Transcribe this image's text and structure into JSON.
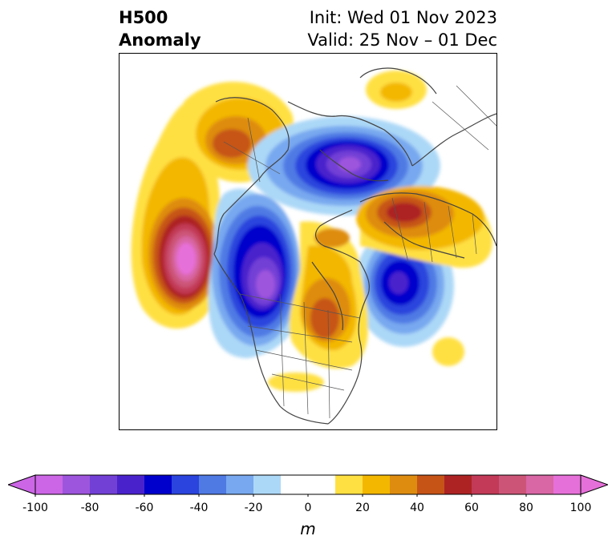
{
  "title": {
    "left_line1": "H500",
    "left_line2": "Anomaly",
    "right_line1": "Init: Wed 01 Nov 2023",
    "right_line2": "Valid: 25 Nov – 01 Dec"
  },
  "colorbar": {
    "unit_label": "m",
    "extend": "both",
    "levels": [
      -100,
      -90,
      -80,
      -70,
      -60,
      -50,
      -40,
      -30,
      -20,
      -10,
      10,
      20,
      30,
      40,
      50,
      60,
      70,
      80,
      90,
      100
    ],
    "colors": [
      "#cc66e6",
      "#9e55dd",
      "#7340d6",
      "#4a22cc",
      "#0000cc",
      "#2a44dd",
      "#4f7ae4",
      "#78a8ef",
      "#acd8f7",
      "#ffffff",
      "#ffe042",
      "#f3b700",
      "#de8c10",
      "#c65417",
      "#ad2324",
      "#c23a57",
      "#cc5577",
      "#d966a5",
      "#e670d9"
    ],
    "ticks": [
      -100,
      -80,
      -60,
      -40,
      -20,
      0,
      20,
      40,
      60,
      80,
      100
    ],
    "tick_labels": [
      "-100",
      "-80",
      "-60",
      "-40",
      "-20",
      "0",
      "20",
      "40",
      "60",
      "80",
      "100"
    ]
  },
  "map": {
    "region": "Northern Hemisphere polar view",
    "anomalies": [
      {
        "id": "pacific-ridge",
        "sign": "positive",
        "peak_m": 100
      },
      {
        "id": "alaska-ridge",
        "sign": "positive",
        "peak_m": 50
      },
      {
        "id": "canada-trough",
        "sign": "negative",
        "peak_m": -90
      },
      {
        "id": "polar-trough",
        "sign": "negative",
        "peak_m": -90
      },
      {
        "id": "atlantic-trough",
        "sign": "negative",
        "peak_m": -70
      },
      {
        "id": "europe-ridge",
        "sign": "positive",
        "peak_m": 60
      },
      {
        "id": "greenland-ridge",
        "sign": "positive",
        "peak_m": 50
      }
    ]
  }
}
